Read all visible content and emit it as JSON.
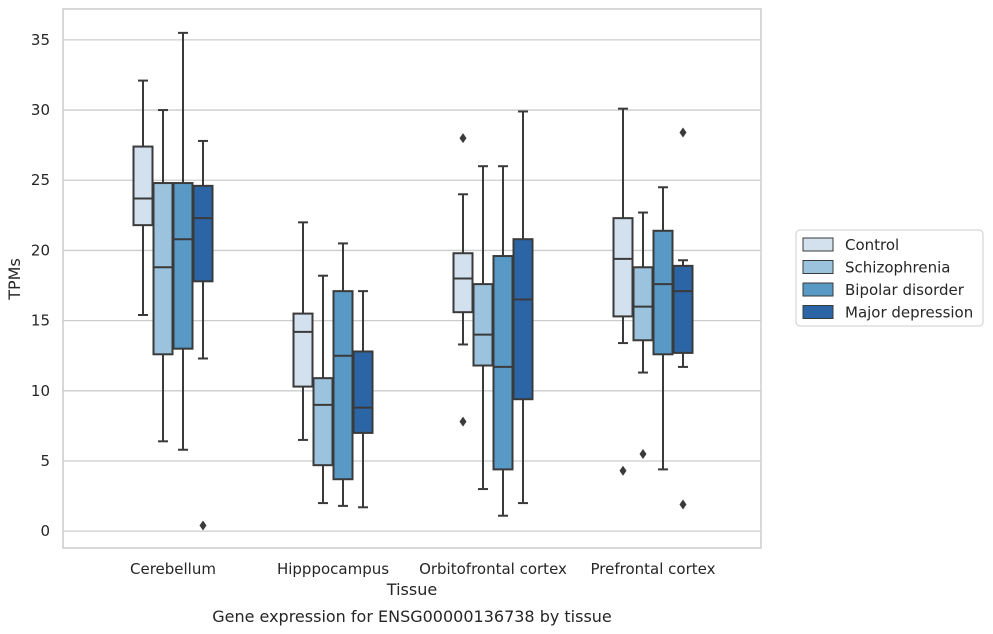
{
  "caption": "Gene expression for ENSG00000136738 by tissue",
  "chart_data": {
    "type": "boxplot",
    "xlabel": "Tissue",
    "ylabel": "TPMs",
    "ylim": [
      -1.2,
      37.2
    ],
    "yticks": [
      0,
      5,
      10,
      15,
      20,
      25,
      30,
      35
    ],
    "grid": "horizontal",
    "legend_position": "right",
    "categories": [
      "Cerebellum",
      "Hipppocampus",
      "Orbitofrontal cortex",
      "Prefrontal cortex"
    ],
    "colors": {
      "Control": "#d3e1ef",
      "Schizophrenia": "#9bc3dd",
      "Bipolar disorder": "#5899c6",
      "Major depression": "#2b65a5",
      "edge": "#3a3a3a",
      "grid": "#cccccc"
    },
    "series": [
      {
        "name": "Control",
        "boxes": [
          {
            "min": 15.4,
            "q1": 21.8,
            "median": 23.7,
            "q3": 27.4,
            "max": 32.1,
            "outliers": []
          },
          {
            "min": 6.5,
            "q1": 10.3,
            "median": 14.2,
            "q3": 15.5,
            "max": 22.0,
            "outliers": []
          },
          {
            "min": 13.3,
            "q1": 15.6,
            "median": 18.0,
            "q3": 19.8,
            "max": 24.0,
            "outliers": [
              28.0,
              7.8
            ]
          },
          {
            "min": 13.4,
            "q1": 15.3,
            "median": 19.4,
            "q3": 22.3,
            "max": 30.1,
            "outliers": [
              4.3
            ]
          }
        ]
      },
      {
        "name": "Schizophrenia",
        "boxes": [
          {
            "min": 6.4,
            "q1": 12.6,
            "median": 18.8,
            "q3": 24.8,
            "max": 30.0,
            "outliers": []
          },
          {
            "min": 2.0,
            "q1": 4.7,
            "median": 9.0,
            "q3": 10.9,
            "max": 18.2,
            "outliers": []
          },
          {
            "min": 3.0,
            "q1": 11.8,
            "median": 14.0,
            "q3": 17.6,
            "max": 26.0,
            "outliers": []
          },
          {
            "min": 11.3,
            "q1": 13.6,
            "median": 16.0,
            "q3": 18.8,
            "max": 22.7,
            "outliers": [
              5.5
            ]
          }
        ]
      },
      {
        "name": "Bipolar disorder",
        "boxes": [
          {
            "min": 5.8,
            "q1": 13.0,
            "median": 20.8,
            "q3": 24.8,
            "max": 35.5,
            "outliers": []
          },
          {
            "min": 1.8,
            "q1": 3.7,
            "median": 12.5,
            "q3": 17.1,
            "max": 20.5,
            "outliers": []
          },
          {
            "min": 1.1,
            "q1": 4.4,
            "median": 11.7,
            "q3": 19.6,
            "max": 26.0,
            "outliers": []
          },
          {
            "min": 4.4,
            "q1": 12.6,
            "median": 17.6,
            "q3": 21.4,
            "max": 24.5,
            "outliers": []
          }
        ]
      },
      {
        "name": "Major depression",
        "boxes": [
          {
            "min": 12.3,
            "q1": 17.8,
            "median": 22.3,
            "q3": 24.6,
            "max": 27.8,
            "outliers": [
              0.4
            ]
          },
          {
            "min": 1.7,
            "q1": 7.0,
            "median": 8.8,
            "q3": 12.8,
            "max": 17.1,
            "outliers": []
          },
          {
            "min": 2.0,
            "q1": 9.4,
            "median": 16.5,
            "q3": 20.8,
            "max": 29.9,
            "outliers": []
          },
          {
            "min": 11.7,
            "q1": 12.7,
            "median": 17.1,
            "q3": 18.9,
            "max": 19.3,
            "outliers": [
              28.4,
              1.9
            ]
          }
        ]
      }
    ]
  }
}
